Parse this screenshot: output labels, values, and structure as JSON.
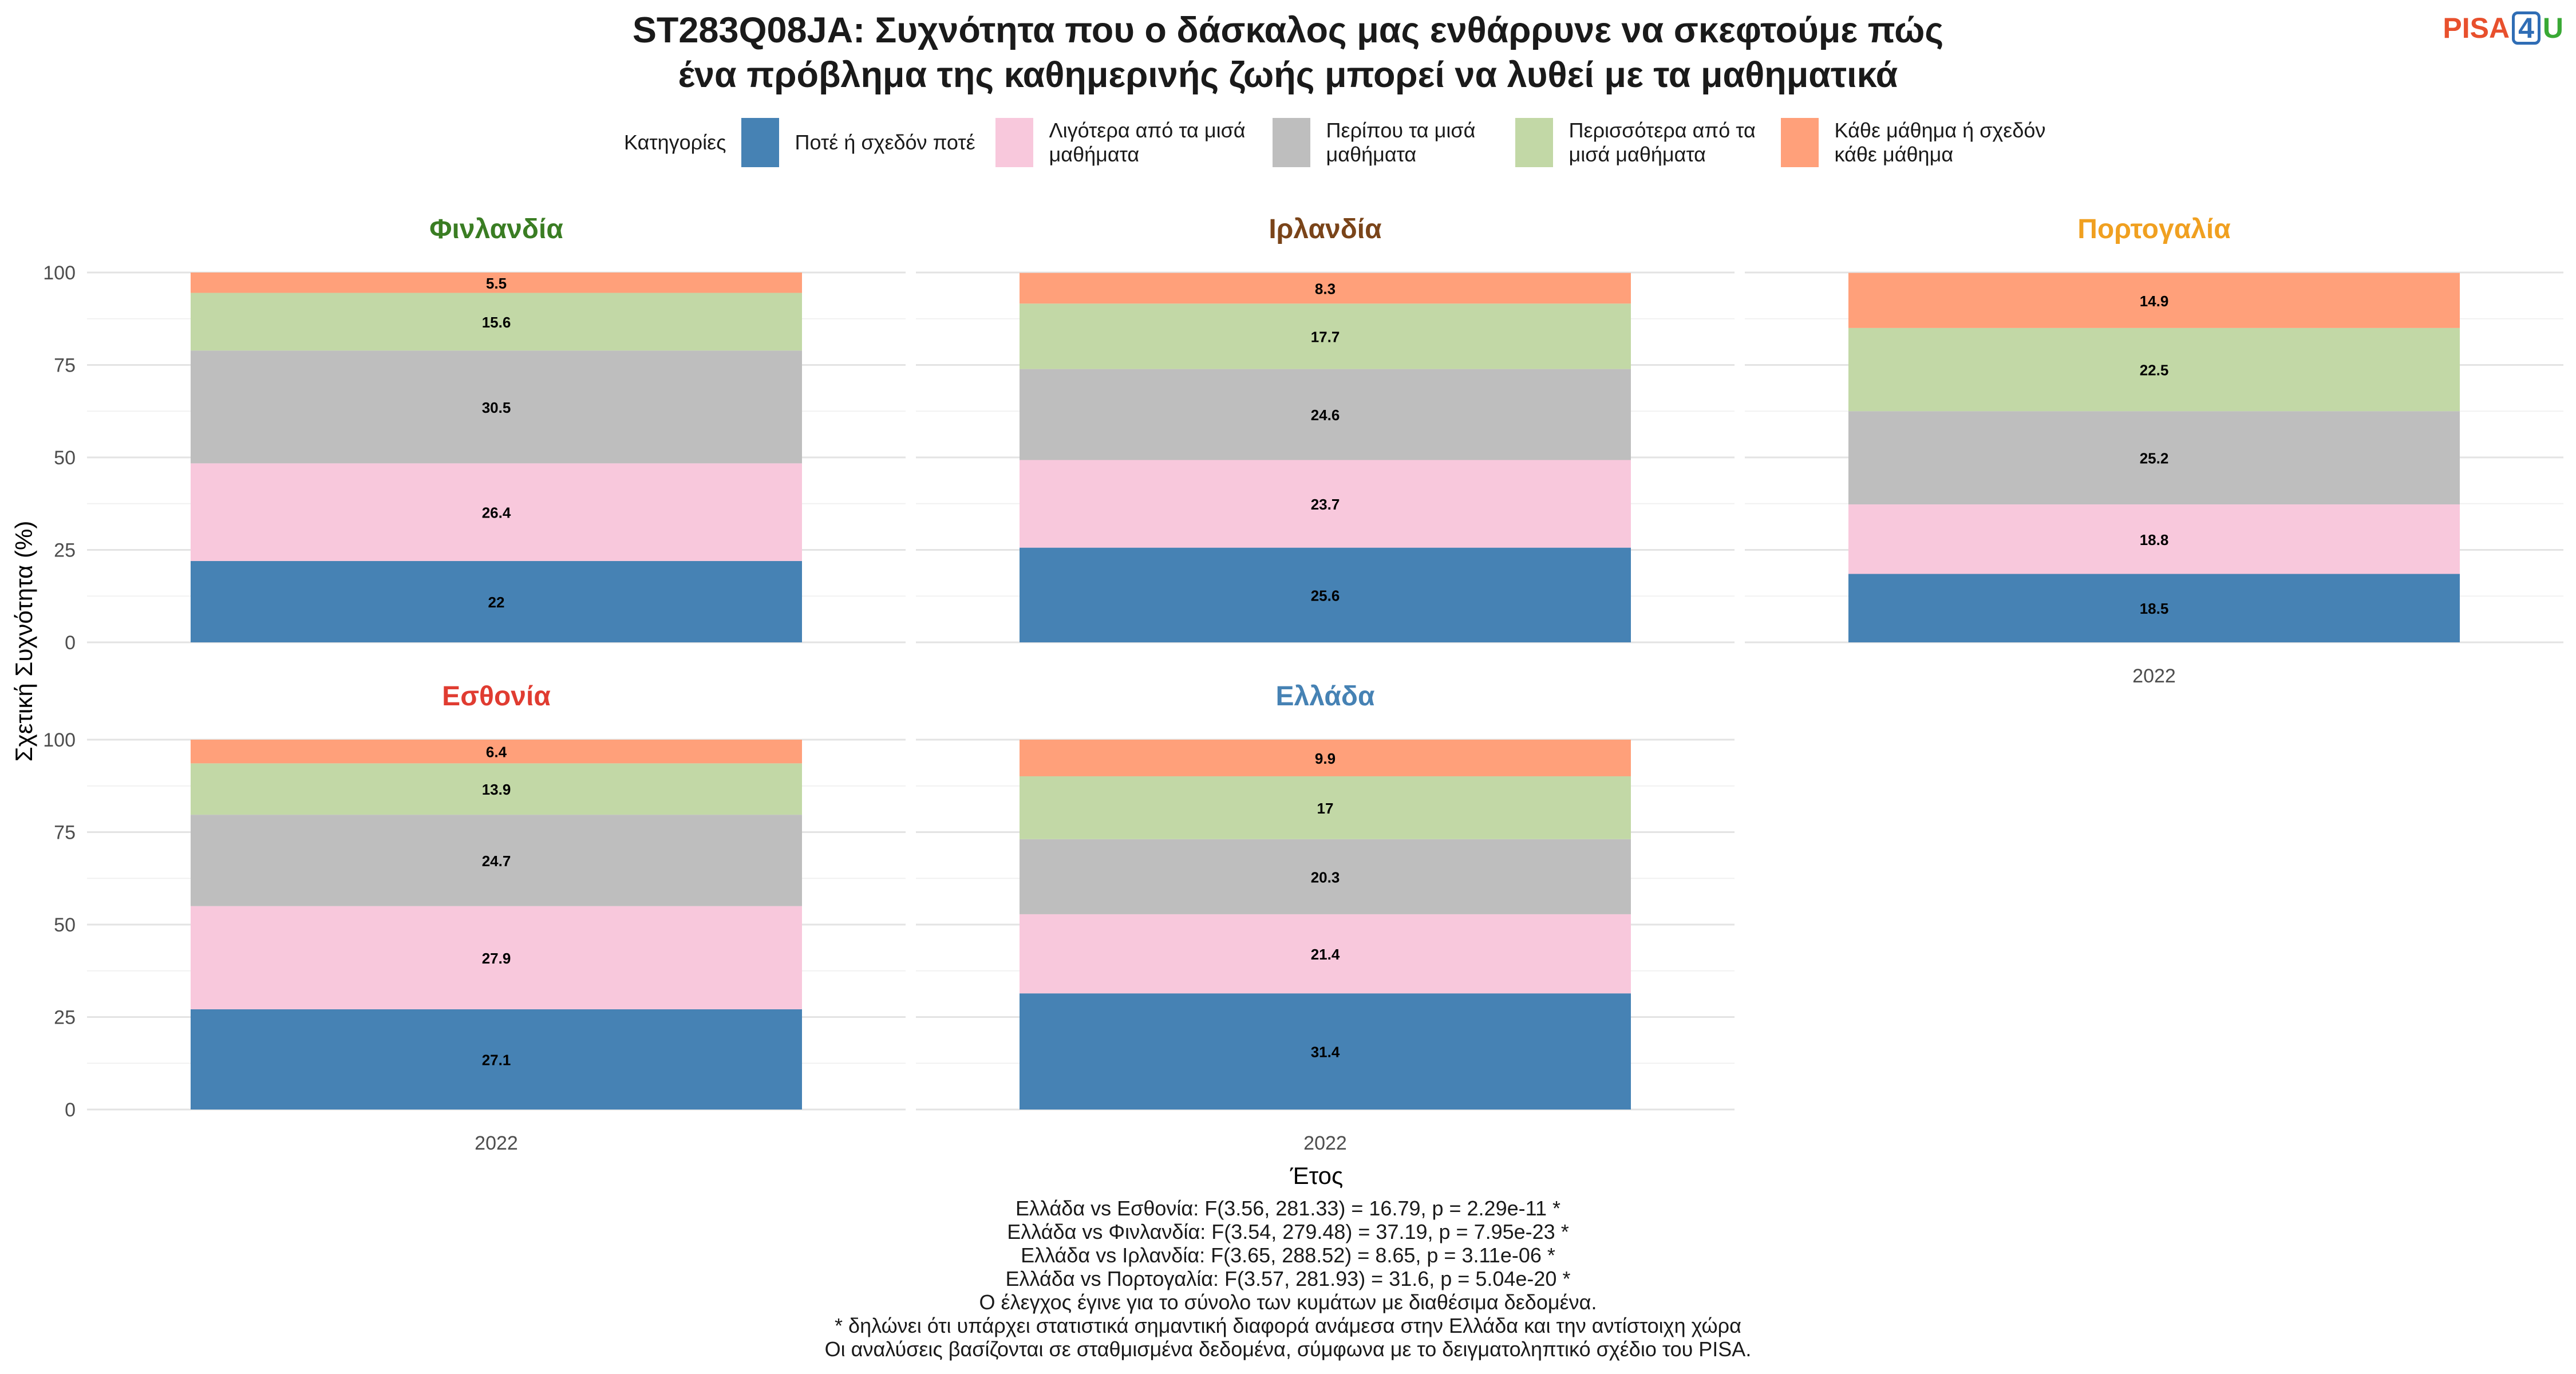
{
  "title_line1": "ST283Q08JA: Συχνότητα που ο δάσκαλος μας ενθάρρυνε να σκεφτούμε πώς",
  "title_line2": "ένα πρόβλημα της καθημερινής ζωής μπορεί να λυθεί με τα μαθηματικά",
  "logo": {
    "pisa": "PISA",
    "four": "4",
    "u": "U"
  },
  "legend": {
    "title": "Κατηγορίες",
    "items": [
      {
        "label": "Ποτέ ή σχεδόν ποτέ",
        "color": "#4682b4"
      },
      {
        "label": "Λιγότερα από τα μισά\nμαθήματα",
        "color": "#f8c8dc"
      },
      {
        "label": "Περίπου τα μισά\nμαθήματα",
        "color": "#bebebe"
      },
      {
        "label": "Περισσότερα από τα\nμισά μαθήματα",
        "color": "#c2d8a6"
      },
      {
        "label": "Κάθε μάθημα ή σχεδόν\nκάθε μάθημα",
        "color": "#ffa07a"
      }
    ]
  },
  "chart_data": {
    "type": "bar",
    "stacked": true,
    "xlabel": "Έτος",
    "ylabel": "Σχετική Συχνότητα (%)",
    "ylim": [
      0,
      100
    ],
    "yticks": [
      0,
      25,
      50,
      75,
      100
    ],
    "categories": [
      "2022"
    ],
    "grid": true,
    "legend_position": "top",
    "facets": [
      {
        "name": "Φινλανδία",
        "color": "#3a7d23",
        "values": [
          22,
          26.4,
          30.5,
          15.6,
          5.5
        ]
      },
      {
        "name": "Ιρλανδία",
        "color": "#7a4419",
        "values": [
          25.6,
          23.7,
          24.6,
          17.7,
          8.3
        ]
      },
      {
        "name": "Πορτογαλία",
        "color": "#f0a020",
        "values": [
          18.5,
          18.8,
          25.2,
          22.5,
          14.9
        ]
      },
      {
        "name": "Εσθονία",
        "color": "#e03c31",
        "values": [
          27.1,
          27.9,
          24.7,
          13.9,
          6.4
        ]
      },
      {
        "name": "Ελλάδα",
        "color": "#4682b4",
        "values": [
          31.4,
          21.4,
          20.3,
          17,
          9.9
        ]
      }
    ]
  },
  "notes": [
    "Ελλάδα vs Εσθονία: F(3.56, 281.33) = 16.79, p = 2.29e-11 *",
    "Ελλάδα vs Φινλανδία: F(3.54, 279.48) = 37.19, p = 7.95e-23 *",
    "Ελλάδα vs Ιρλανδία: F(3.65, 288.52) = 8.65, p = 3.11e-06 *",
    "Ελλάδα vs Πορτογαλία: F(3.57, 281.93) = 31.6, p = 5.04e-20 *",
    "Ο έλεγχος έγινε για το σύνολο των κυμάτων με διαθέσιμα δεδομένα.",
    "* δηλώνει ότι υπάρχει στατιστικά σημαντική διαφορά ανάμεσα στην Ελλάδα και την αντίστοιχη χώρα",
    "Οι αναλύσεις βασίζονται σε σταθμισμένα δεδομένα, σύμφωνα με το δειγματοληπτικό σχέδιο του PISA."
  ]
}
